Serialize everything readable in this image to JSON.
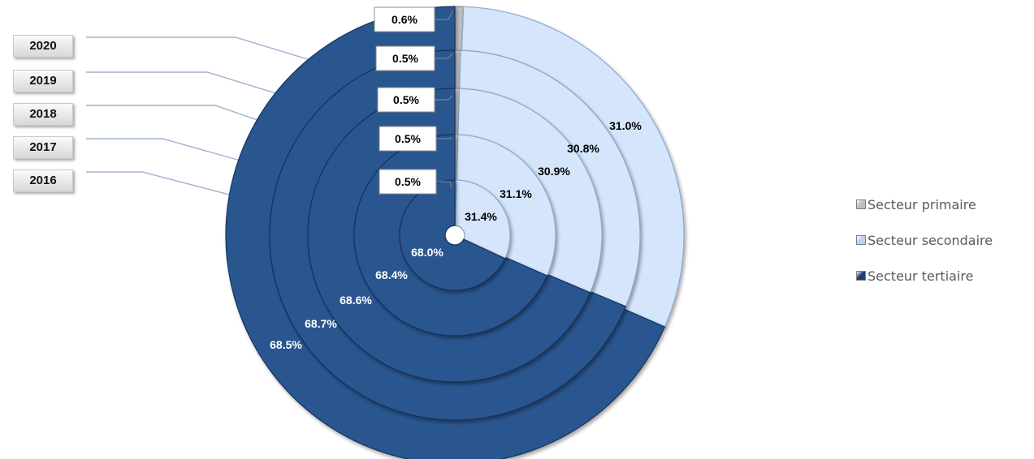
{
  "chart_data": {
    "type": "pie",
    "subtype": "multi-level donut",
    "title": "",
    "rings": [
      "2016",
      "2017",
      "2018",
      "2019",
      "2020"
    ],
    "year_labels": [
      "2020",
      "2019",
      "2018",
      "2017",
      "2016"
    ],
    "series": [
      {
        "name": "Secteur primaire",
        "values": [
          0.5,
          0.5,
          0.5,
          0.5,
          0.6
        ],
        "labels": [
          "0.5%",
          "0.5%",
          "0.5%",
          "0.5%",
          "0.6%"
        ]
      },
      {
        "name": "Secteur secondaire",
        "values": [
          31.4,
          31.1,
          30.9,
          30.8,
          31.0
        ],
        "labels": [
          "31.4%",
          "31.1%",
          "30.9%",
          "30.8%",
          "31.0%"
        ]
      },
      {
        "name": "Secteur tertiaire",
        "values": [
          68.0,
          68.4,
          68.6,
          68.7,
          68.5
        ],
        "labels": [
          "68.0%",
          "68.4%",
          "68.6%",
          "68.7%",
          "68.5%"
        ]
      }
    ],
    "colors": {
      "primaire": "#c0c0c0",
      "secondaire": "#d5e5fb",
      "tertiaire": "#2c5690"
    },
    "legend": {
      "position": "right",
      "items": [
        {
          "label": "Secteur primaire",
          "color": "#c0c0c0"
        },
        {
          "label": "Secteur secondaire",
          "color": "#b9d1f1"
        },
        {
          "label": "Secteur tertiaire",
          "color": "#1f3f6f"
        }
      ]
    }
  }
}
